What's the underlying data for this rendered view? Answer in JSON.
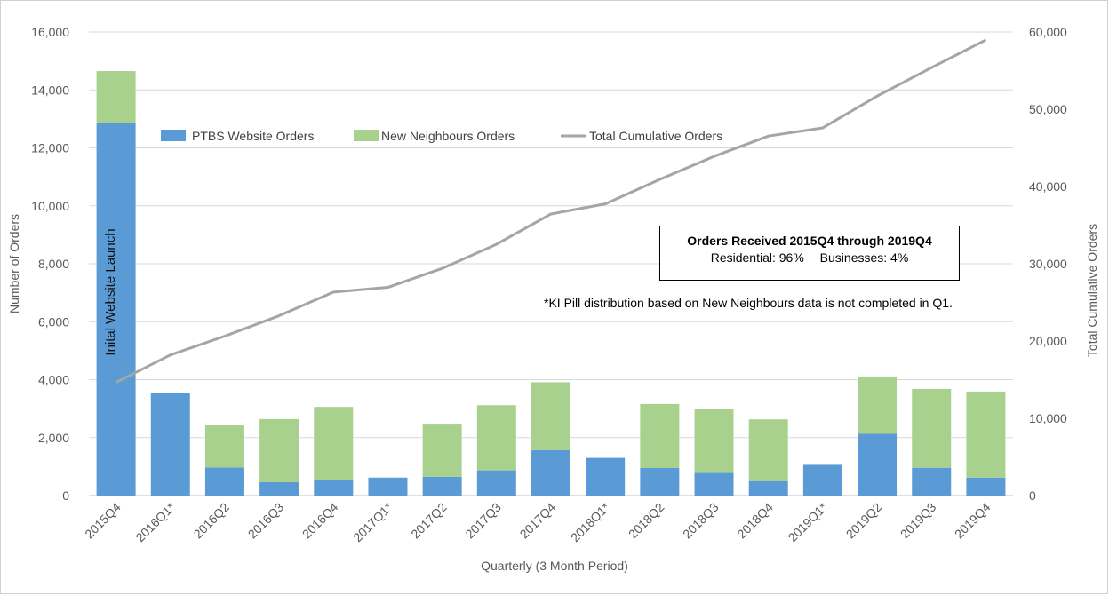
{
  "chart_data": {
    "type": "bar",
    "stacked": true,
    "categories": [
      "2015Q4",
      "2016Q1*",
      "2016Q2",
      "2016Q3",
      "2016Q4",
      "2017Q1*",
      "2017Q2",
      "2017Q3",
      "2017Q4",
      "2018Q1*",
      "2018Q2",
      "2018Q3",
      "2018Q4",
      "2019Q1*",
      "2019Q2",
      "2019Q3",
      "2019Q4"
    ],
    "series": [
      {
        "name": "PTBS Website Orders",
        "kind": "bar",
        "axis": "left",
        "color": "#5b9bd5",
        "values": [
          12850,
          3550,
          970,
          460,
          540,
          620,
          650,
          870,
          1570,
          1300,
          950,
          780,
          500,
          1060,
          2130,
          960,
          620
        ]
      },
      {
        "name": "New Neighbours Orders",
        "kind": "bar",
        "axis": "left",
        "color": "#a9d18e",
        "values": [
          1800,
          0,
          1450,
          2180,
          2520,
          0,
          1800,
          2250,
          2340,
          0,
          2210,
          2220,
          2130,
          0,
          1980,
          2720,
          2970
        ]
      },
      {
        "name": "Total Cumulative Orders",
        "kind": "line",
        "axis": "right",
        "color": "#a5a5a5",
        "values": [
          14650,
          18200,
          20630,
          23270,
          26330,
          26950,
          29400,
          32530,
          36440,
          37740,
          40900,
          43900,
          46530,
          47590,
          51700,
          55380,
          58970
        ]
      }
    ],
    "xlabel": "Quarterly (3 Month Period)",
    "ylabel": "Number of Orders",
    "y2label": "Total Cumulative Orders",
    "ylim": [
      0,
      16000
    ],
    "y2lim": [
      0,
      60000
    ],
    "yticks": [
      "0",
      "2,000",
      "4,000",
      "6,000",
      "8,000",
      "10,000",
      "12,000",
      "14,000",
      "16,000"
    ],
    "y2ticks": [
      "0",
      "10,000",
      "20,000",
      "30,000",
      "40,000",
      "50,000",
      "60,000"
    ],
    "grid": true,
    "legend_position": "top-left",
    "bar_annotation": "Inital  Website Launch",
    "info_box": {
      "title": "Orders Received 2015Q4 through 2019Q4",
      "residential": "Residential: 96%",
      "businesses": "Businesses: 4%"
    },
    "footnote": "*KI Pill distribution based on New Neighbours data is  not completed  in Q1."
  }
}
